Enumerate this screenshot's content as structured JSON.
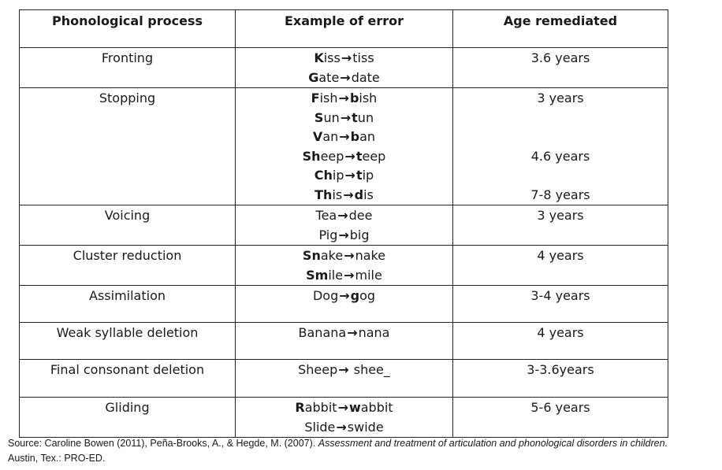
{
  "headers": {
    "process": "Phonological process",
    "example": "Example of error",
    "age": "Age remediated"
  },
  "arrow": "→",
  "rows": [
    {
      "process": "Fronting",
      "height": 50,
      "examples": [
        {
          "segments": [
            {
              "t": "K",
              "b": true
            },
            {
              "t": "iss",
              "b": false
            },
            {
              "arrow": true
            },
            {
              "t": "tiss",
              "b": false
            }
          ]
        },
        {
          "segments": [
            {
              "t": "G",
              "b": true
            },
            {
              "t": "ate",
              "b": false
            },
            {
              "arrow": true
            },
            {
              "t": "date",
              "b": false
            }
          ]
        }
      ],
      "ages": [
        "3.6 years"
      ]
    },
    {
      "process": "Stopping",
      "height": 148,
      "examples": [
        {
          "segments": [
            {
              "t": "F",
              "b": true
            },
            {
              "t": "ish",
              "b": false
            },
            {
              "arrow": true
            },
            {
              "t": "b",
              "b": true
            },
            {
              "t": "ish",
              "b": false
            }
          ]
        },
        {
          "segments": [
            {
              "t": "S",
              "b": true
            },
            {
              "t": "un",
              "b": false
            },
            {
              "arrow": true
            },
            {
              "t": "t",
              "b": true
            },
            {
              "t": "un",
              "b": false
            }
          ]
        },
        {
          "segments": [
            {
              "t": "V",
              "b": true
            },
            {
              "t": "an",
              "b": false
            },
            {
              "arrow": true
            },
            {
              "t": "b",
              "b": true
            },
            {
              "t": "an",
              "b": false
            }
          ]
        },
        {
          "segments": [
            {
              "t": "Sh",
              "b": true
            },
            {
              "t": "eep",
              "b": false
            },
            {
              "arrow": true
            },
            {
              "t": "t",
              "b": true
            },
            {
              "t": "eep",
              "b": false
            }
          ]
        },
        {
          "segments": [
            {
              "t": "Ch",
              "b": true
            },
            {
              "t": "ip",
              "b": false
            },
            {
              "arrow": true
            },
            {
              "t": "t",
              "b": true
            },
            {
              "t": "ip",
              "b": false
            }
          ]
        },
        {
          "segments": [
            {
              "t": "Th",
              "b": true
            },
            {
              "t": "is",
              "b": false
            },
            {
              "arrow": true
            },
            {
              "t": "d",
              "b": true
            },
            {
              "t": "is",
              "b": false
            }
          ]
        }
      ],
      "ages": [
        "3 years",
        "",
        "",
        "4.6 years",
        "",
        "7-8 years"
      ]
    },
    {
      "process": "Voicing",
      "height": 50,
      "examples": [
        {
          "segments": [
            {
              "t": "Tea",
              "b": false
            },
            {
              "arrow": true
            },
            {
              "t": "dee",
              "b": false
            }
          ]
        },
        {
          "segments": [
            {
              "t": "Pig",
              "b": false
            },
            {
              "arrow": true
            },
            {
              "t": "big",
              "b": false
            }
          ]
        }
      ],
      "ages": [
        "3 years"
      ]
    },
    {
      "process": "Cluster reduction",
      "height": 50,
      "examples": [
        {
          "segments": [
            {
              "t": "Sn",
              "b": true
            },
            {
              "t": "ake",
              "b": false
            },
            {
              "arrow": true
            },
            {
              "t": "nake",
              "b": false
            }
          ]
        },
        {
          "segments": [
            {
              "t": "Sm",
              "b": true
            },
            {
              "t": "ile",
              "b": false
            },
            {
              "arrow": true
            },
            {
              "t": "mile",
              "b": false
            }
          ]
        }
      ],
      "ages": [
        "4 years"
      ]
    },
    {
      "process": "Assimilation",
      "height": 47,
      "examples": [
        {
          "segments": [
            {
              "t": "Dog",
              "b": false
            },
            {
              "arrow": true
            },
            {
              "t": "g",
              "b": true
            },
            {
              "t": "og",
              "b": false
            }
          ]
        }
      ],
      "ages": [
        "3-4 years"
      ]
    },
    {
      "process": "Weak syllable deletion",
      "height": 47,
      "examples": [
        {
          "segments": [
            {
              "t": "Banana",
              "b": false
            },
            {
              "arrow": true
            },
            {
              "t": "nana",
              "b": false
            }
          ]
        }
      ],
      "ages": [
        "4 years"
      ]
    },
    {
      "process": "Final consonant deletion",
      "height": 48,
      "examples": [
        {
          "segments": [
            {
              "t": "Sheep",
              "b": false
            },
            {
              "arrow": true
            },
            {
              "t": " shee_",
              "b": false
            }
          ]
        }
      ],
      "ages": [
        "3-3.6years"
      ]
    },
    {
      "process": "Gliding",
      "height": 50,
      "examples": [
        {
          "segments": [
            {
              "t": "R",
              "b": true
            },
            {
              "t": "abbit",
              "b": false
            },
            {
              "arrow": true
            },
            {
              "t": "w",
              "b": true
            },
            {
              "t": "abbit",
              "b": false
            }
          ]
        },
        {
          "segments": [
            {
              "t": "Sl",
              "b": false
            },
            {
              "t": "ide",
              "b": false
            },
            {
              "arrow": true
            },
            {
              "t": "sw",
              "b": false
            },
            {
              "t": "ide",
              "b": false
            }
          ]
        }
      ],
      "ages": [
        "5-6 years"
      ]
    }
  ],
  "source": {
    "prefix": "Source: Caroline Bowen (2011), Peña-Brooks, A., & Hegde, M. (2007). ",
    "title": "Assessment and treatment of articulation and phonological disorders in children.",
    "suffix": "Austin, Tex.: PRO-ED."
  }
}
